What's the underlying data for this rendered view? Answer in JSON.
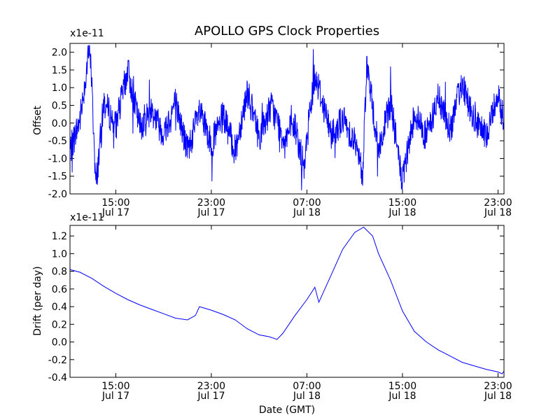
{
  "chart_data": [
    {
      "type": "line",
      "title": "APOLLO GPS Clock Properties",
      "xlabel": "",
      "ylabel": "Offset",
      "y_multiplier": "x1e-11",
      "ylim": [
        -2.0,
        2.25
      ],
      "y_ticks": [
        "2.0",
        "1.5",
        "1.0",
        "0.5",
        "0.0",
        "-0.5",
        "-1.0",
        "-1.5",
        "-2.0"
      ],
      "x_ticks": [
        {
          "time": "15:00",
          "date": "Jul 17"
        },
        {
          "time": "23:00",
          "date": "Jul 17"
        },
        {
          "time": "07:00",
          "date": "Jul 18"
        },
        {
          "time": "15:00",
          "date": "Jul 18"
        },
        {
          "time": "23:00",
          "date": "Jul 18"
        }
      ],
      "xlim": [
        "2012-07-17 11:10",
        "2012-07-18 23:30"
      ],
      "color": "#0000ff",
      "grid": false,
      "series": [
        {
          "x": [
            "2012-07-17 11:10",
            "2012-07-17 12:00",
            "2012-07-17 12:50",
            "2012-07-17 13:00",
            "2012-07-17 13:20",
            "2012-07-17 14:00",
            "2012-07-17 15:00",
            "2012-07-17 16:00",
            "2012-07-17 17:00",
            "2012-07-17 18:00",
            "2012-07-17 19:00",
            "2012-07-17 20:00",
            "2012-07-17 21:00",
            "2012-07-17 22:00",
            "2012-07-17 23:00",
            "2012-07-18 00:00",
            "2012-07-18 01:00",
            "2012-07-18 02:00",
            "2012-07-18 03:00",
            "2012-07-18 04:00",
            "2012-07-18 05:00",
            "2012-07-18 06:00",
            "2012-07-18 06:50",
            "2012-07-18 07:00",
            "2012-07-18 07:40",
            "2012-07-18 08:00",
            "2012-07-18 09:00",
            "2012-07-18 10:00",
            "2012-07-18 11:00",
            "2012-07-18 11:40",
            "2012-07-18 12:00",
            "2012-07-18 13:00",
            "2012-07-18 14:00",
            "2012-07-18 15:00",
            "2012-07-18 16:00",
            "2012-07-18 17:00",
            "2012-07-18 18:00",
            "2012-07-18 19:00",
            "2012-07-18 20:00",
            "2012-07-18 21:00",
            "2012-07-18 22:00",
            "2012-07-18 23:00",
            "2012-07-18 23:30"
          ],
          "y": [
            -0.8,
            0.1,
            2.2,
            1.0,
            -1.8,
            0.6,
            -0.1,
            1.5,
            -0.1,
            0.4,
            -0.3,
            0.6,
            -0.8,
            0.3,
            -0.6,
            0.2,
            -0.8,
            0.9,
            -0.4,
            0.5,
            -0.4,
            -0.1,
            -1.4,
            -0.3,
            1.4,
            1.0,
            -0.3,
            0.1,
            -0.5,
            -1.5,
            1.7,
            -0.8,
            0.6,
            -1.7,
            0.3,
            -0.4,
            0.7,
            -0.2,
            1.2,
            0.0,
            -0.4,
            0.9,
            0.0
          ]
        }
      ]
    },
    {
      "type": "line",
      "title": "",
      "xlabel": "Date (GMT)",
      "ylabel": "Drift (per day)",
      "y_multiplier": "x1e-11",
      "ylim": [
        -0.4,
        1.32
      ],
      "y_ticks": [
        "1.2",
        "1.0",
        "0.8",
        "0.6",
        "0.4",
        "0.2",
        "0.0",
        "-0.2",
        "-0.4"
      ],
      "x_ticks": [
        {
          "time": "15:00",
          "date": "Jul 17"
        },
        {
          "time": "23:00",
          "date": "Jul 17"
        },
        {
          "time": "07:00",
          "date": "Jul 18"
        },
        {
          "time": "15:00",
          "date": "Jul 18"
        },
        {
          "time": "23:00",
          "date": "Jul 18"
        }
      ],
      "xlim": [
        "2012-07-17 11:10",
        "2012-07-18 23:30"
      ],
      "color": "#0000ff",
      "grid": false,
      "series": [
        {
          "x": [
            "2012-07-17 11:10",
            "2012-07-17 12:00",
            "2012-07-17 13:00",
            "2012-07-17 14:00",
            "2012-07-17 15:00",
            "2012-07-17 16:00",
            "2012-07-17 17:00",
            "2012-07-17 18:00",
            "2012-07-17 19:00",
            "2012-07-17 20:00",
            "2012-07-17 21:00",
            "2012-07-17 21:40",
            "2012-07-17 22:00",
            "2012-07-17 23:00",
            "2012-07-18 00:00",
            "2012-07-18 01:00",
            "2012-07-18 02:00",
            "2012-07-18 03:00",
            "2012-07-18 03:50",
            "2012-07-18 04:30",
            "2012-07-18 05:00",
            "2012-07-18 06:00",
            "2012-07-18 07:00",
            "2012-07-18 07:40",
            "2012-07-18 08:00",
            "2012-07-18 09:00",
            "2012-07-18 10:00",
            "2012-07-18 11:00",
            "2012-07-18 11:45",
            "2012-07-18 12:30",
            "2012-07-18 13:00",
            "2012-07-18 14:00",
            "2012-07-18 15:00",
            "2012-07-18 16:00",
            "2012-07-18 17:00",
            "2012-07-18 18:00",
            "2012-07-18 19:00",
            "2012-07-18 20:00",
            "2012-07-18 21:00",
            "2012-07-18 22:00",
            "2012-07-18 23:00",
            "2012-07-18 23:20",
            "2012-07-18 23:30"
          ],
          "y": [
            0.82,
            0.79,
            0.72,
            0.63,
            0.55,
            0.48,
            0.42,
            0.37,
            0.32,
            0.27,
            0.25,
            0.3,
            0.4,
            0.36,
            0.31,
            0.25,
            0.15,
            0.08,
            0.06,
            0.03,
            0.1,
            0.3,
            0.48,
            0.62,
            0.45,
            0.75,
            1.05,
            1.24,
            1.3,
            1.2,
            1.0,
            0.7,
            0.35,
            0.12,
            0.0,
            -0.09,
            -0.16,
            -0.23,
            -0.27,
            -0.31,
            -0.34,
            -0.36,
            -0.33
          ]
        }
      ]
    }
  ]
}
